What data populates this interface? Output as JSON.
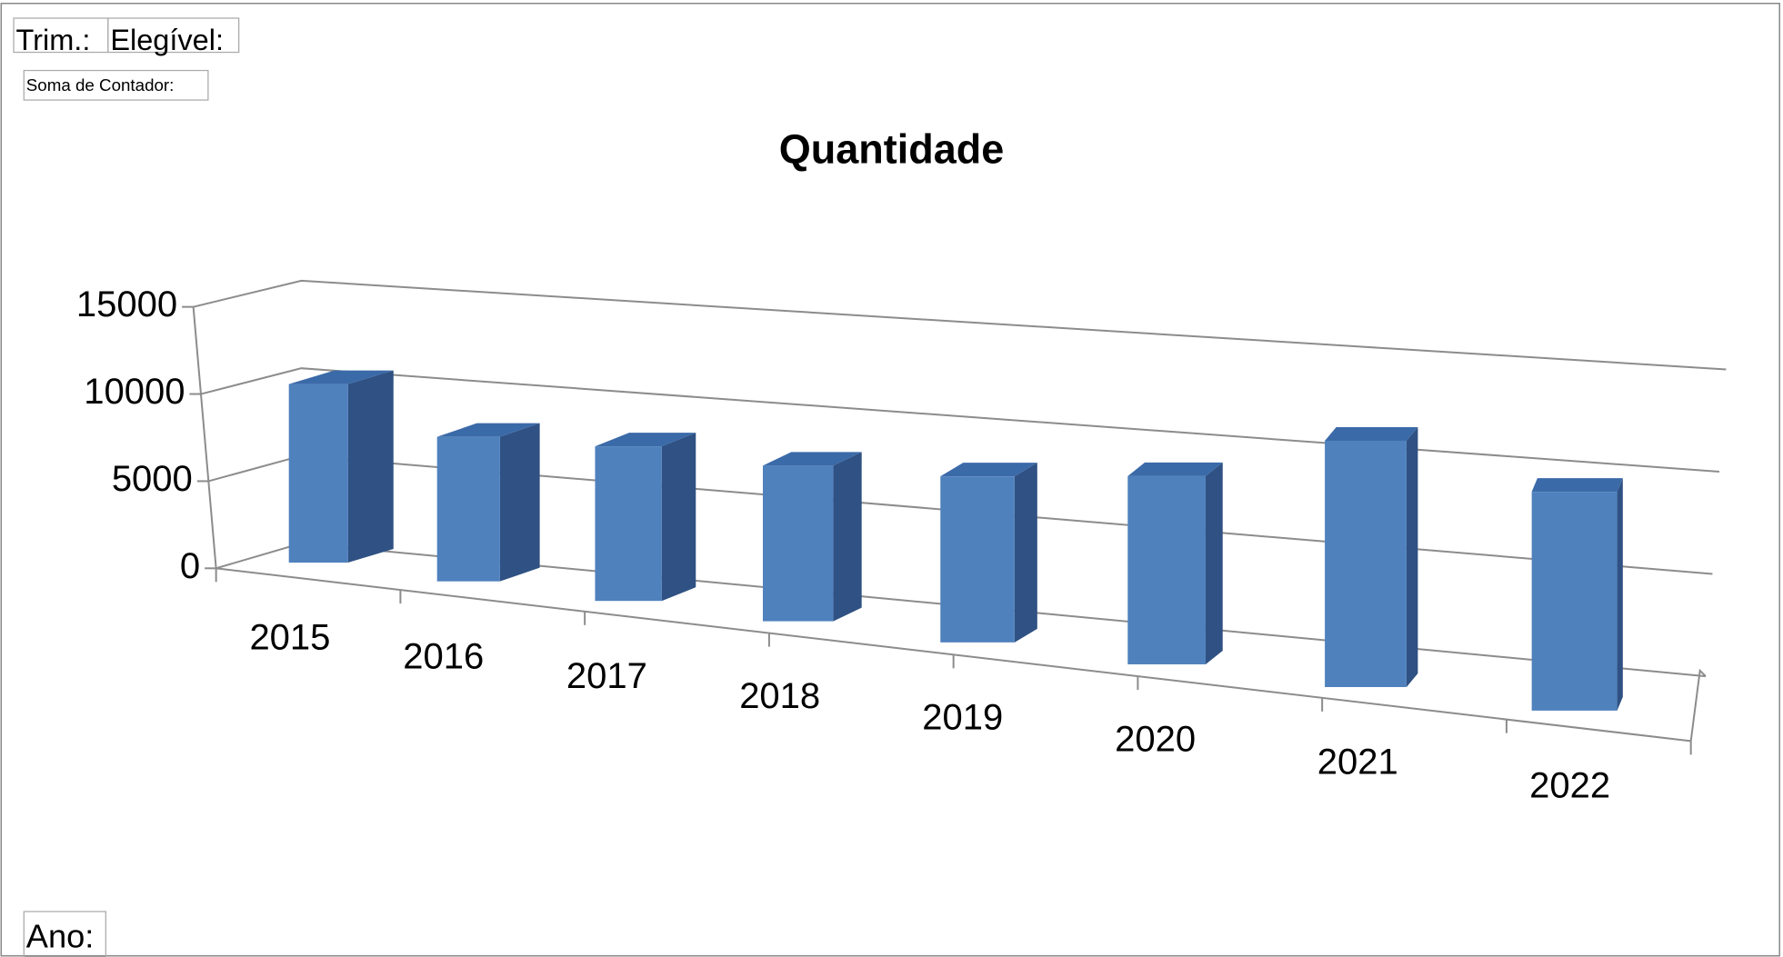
{
  "chart_data": {
    "type": "bar3d",
    "title": "Quantidade",
    "filter_fields": [
      "Trim.:",
      "Elegível:"
    ],
    "value_field": "Soma de Contador:",
    "axis_field": "Ano:",
    "categories": [
      "2015",
      "2016",
      "2017",
      "2018",
      "2019",
      "2020",
      "2021",
      "2022"
    ],
    "values": [
      10200,
      8100,
      8500,
      8400,
      8800,
      9800,
      12600,
      11000
    ],
    "color": "#4f81bd",
    "side_color": "#2f5183",
    "top_color": "#3b6aa8",
    "ylim": [
      0,
      15000
    ],
    "yticks": [
      0,
      5000,
      10000,
      15000
    ],
    "grid": true
  }
}
